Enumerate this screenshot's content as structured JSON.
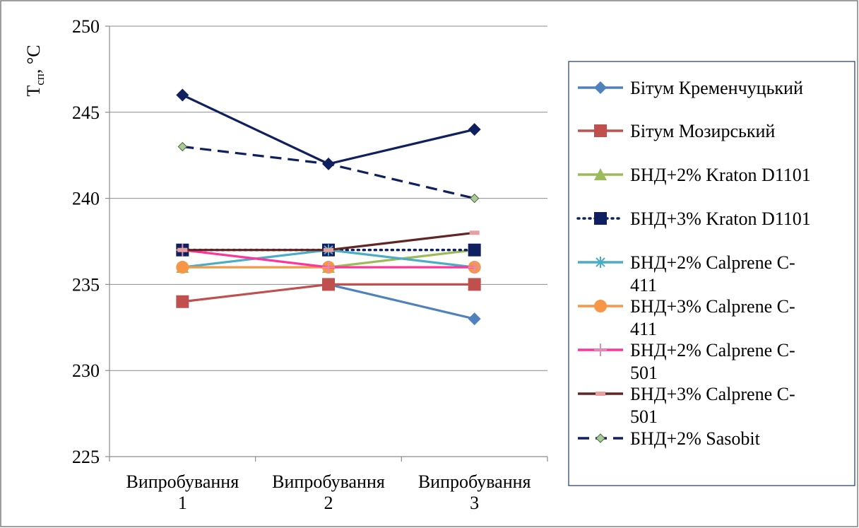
{
  "chart_data": {
    "type": "line",
    "ylabel_main": "Т",
    "ylabel_sub": "сп",
    "ylabel_unit": ", °С",
    "ylim": [
      225,
      250
    ],
    "yticks": [
      225,
      230,
      235,
      240,
      245,
      250
    ],
    "categories": [
      [
        "Випробування",
        "1"
      ],
      [
        "Випробування",
        "2"
      ],
      [
        "Випробування",
        "3"
      ]
    ],
    "grid": "horizontal",
    "legend_position": "right",
    "series": [
      {
        "name": [
          "Бітум Кременчуцький"
        ],
        "values": [
          null,
          235,
          233
        ],
        "color": "#4F81BD",
        "marker": "diamond",
        "dash": "solid"
      },
      {
        "name": [
          "Бітум Мозирський"
        ],
        "values": [
          234,
          235,
          235
        ],
        "color": "#C0504D",
        "marker": "square",
        "dash": "solid"
      },
      {
        "name": [
          "БНД+2% Kraton D1101"
        ],
        "values": [
          236,
          236,
          237
        ],
        "color": "#9BBB59",
        "marker": "triangle",
        "dash": "solid"
      },
      {
        "name": [
          "БНД+3% Kraton D1101"
        ],
        "values": [
          237,
          237,
          237
        ],
        "color": "#0F1F5F",
        "marker": "square",
        "dash": "dotted"
      },
      {
        "name": [
          "БНД+2% Calprene C-",
          "411"
        ],
        "values": [
          236,
          237,
          236
        ],
        "color": "#4BACC6",
        "marker": "star",
        "dash": "solid"
      },
      {
        "name": [
          "БНД+3% Calprene C-",
          "411"
        ],
        "values": [
          236,
          236,
          236
        ],
        "color": "#F79646",
        "marker": "circle",
        "dash": "solid"
      },
      {
        "name": [
          "БНД+2% Calprene C-",
          "501"
        ],
        "values": [
          237,
          236,
          236
        ],
        "color": "#FF3399",
        "marker": "plus",
        "dash": "solid"
      },
      {
        "name": [
          "БНД+3% Calprene C-",
          "501"
        ],
        "values": [
          237,
          237,
          238
        ],
        "color": "#632523",
        "marker": "dash",
        "dash": "solid"
      },
      {
        "name": [
          "БНД+2% Sasobit"
        ],
        "values": [
          243,
          242,
          240
        ],
        "color": "#0F1F5F",
        "marker": "smalldiamond",
        "dash": "dashed"
      },
      {
        "name": [
          ""
        ],
        "values": [
          246,
          242,
          244
        ],
        "color": "#0F1F5F",
        "marker": "diamond",
        "dash": "solid"
      }
    ]
  }
}
